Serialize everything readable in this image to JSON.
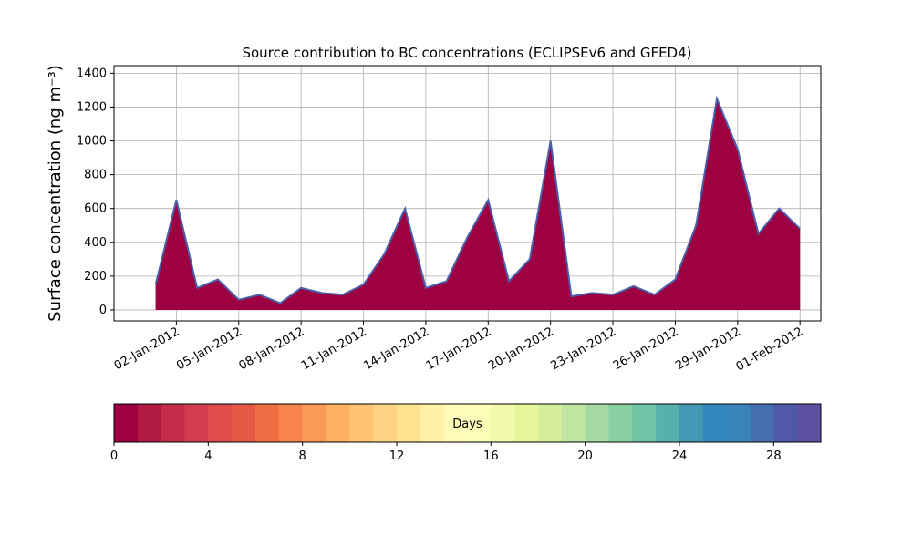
{
  "chart_data": {
    "type": "area",
    "title": "Source contribution to BC concentrations (ECLIPSEv6 and GFED4)",
    "ylabel": "Surface concentration (ng m⁻³)",
    "x": [
      "2012-01-01",
      "2012-01-02",
      "2012-01-03",
      "2012-01-04",
      "2012-01-05",
      "2012-01-06",
      "2012-01-07",
      "2012-01-08",
      "2012-01-09",
      "2012-01-10",
      "2012-01-11",
      "2012-01-12",
      "2012-01-13",
      "2012-01-14",
      "2012-01-15",
      "2012-01-16",
      "2012-01-17",
      "2012-01-18",
      "2012-01-19",
      "2012-01-20",
      "2012-01-21",
      "2012-01-22",
      "2012-01-23",
      "2012-01-24",
      "2012-01-25",
      "2012-01-26",
      "2012-01-27",
      "2012-01-28",
      "2012-01-29",
      "2012-01-30",
      "2012-01-31",
      "2012-02-01"
    ],
    "values": [
      150,
      650,
      130,
      180,
      60,
      90,
      40,
      130,
      100,
      90,
      150,
      330,
      600,
      130,
      170,
      430,
      650,
      170,
      300,
      1000,
      80,
      100,
      90,
      140,
      90,
      180,
      500,
      1250,
      950,
      450,
      600,
      480
    ],
    "color": "#9e0142",
    "line_color": "#4a5fa8",
    "xlim": [
      "2011-12-30",
      "2012-02-02"
    ],
    "xticks": [
      {
        "value": "2012-01-02",
        "label": "02-Jan-2012"
      },
      {
        "value": "2012-01-05",
        "label": "05-Jan-2012"
      },
      {
        "value": "2012-01-08",
        "label": "08-Jan-2012"
      },
      {
        "value": "2012-01-11",
        "label": "11-Jan-2012"
      },
      {
        "value": "2012-01-14",
        "label": "14-Jan-2012"
      },
      {
        "value": "2012-01-17",
        "label": "17-Jan-2012"
      },
      {
        "value": "2012-01-20",
        "label": "20-Jan-2012"
      },
      {
        "value": "2012-01-23",
        "label": "23-Jan-2012"
      },
      {
        "value": "2012-01-26",
        "label": "26-Jan-2012"
      },
      {
        "value": "2012-01-29",
        "label": "29-Jan-2012"
      },
      {
        "value": "2012-02-01",
        "label": "01-Feb-2012"
      }
    ],
    "ylim": [
      -65,
      1445
    ],
    "yticks": [
      0,
      200,
      400,
      600,
      800,
      1000,
      1200,
      1400
    ],
    "grid": true,
    "colorbar": {
      "label": "Days",
      "lim": [
        0,
        30
      ],
      "ticks": [
        0,
        4,
        8,
        12,
        16,
        20,
        24,
        28
      ],
      "colors": [
        "#9e0142",
        "#b11a45",
        "#c42b4a",
        "#d33c4e",
        "#de4d4b",
        "#e75947",
        "#f06e44",
        "#f7854b",
        "#fa9a57",
        "#fdb062",
        "#fdc372",
        "#fed382",
        "#fee391",
        "#fff0a6",
        "#fffbb8",
        "#fbfdb9",
        "#f3faad",
        "#e6f59a",
        "#d5ee9b",
        "#bfe5a0",
        "#a5daa4",
        "#88cfa4",
        "#6ec4a5",
        "#57b0ab",
        "#4399b4",
        "#3288bd",
        "#3a84bb",
        "#4470b1",
        "#5059a7",
        "#5e4fa2"
      ]
    }
  }
}
